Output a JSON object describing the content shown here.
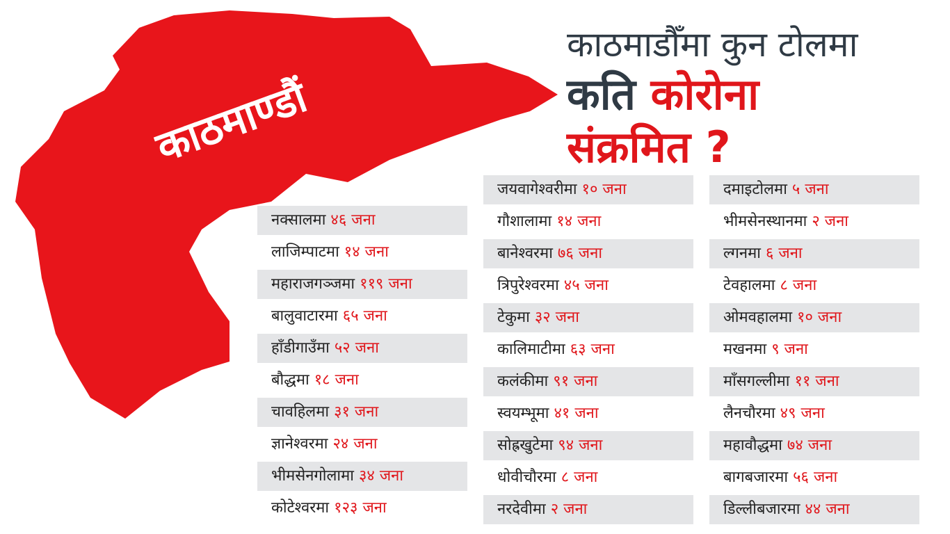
{
  "title": {
    "line1": "काठमाडौँमा कुन टोलमा",
    "line2_a": "कति",
    "line2_b": "कोरोना",
    "line3": "संक्रमित ?"
  },
  "map_label": "काठमाण्डौं",
  "columns": [
    [
      {
        "place": "नक्सालमा",
        "count": "४६ जना"
      },
      {
        "place": "लाजिम्पाटमा",
        "count": "१४ जना"
      },
      {
        "place": "महाराजगञ्जमा",
        "count": "११९ जना"
      },
      {
        "place": "बालुवाटारमा",
        "count": "६५ जना"
      },
      {
        "place": "हाँडीगाउँमा",
        "count": "५२ जना"
      },
      {
        "place": "बौद्धमा",
        "count": "१८ जना"
      },
      {
        "place": "चावहिलमा",
        "count": "३१ जना"
      },
      {
        "place": "ज्ञानेश्वरमा",
        "count": "२४ जना"
      },
      {
        "place": "भीमसेनगोलामा",
        "count": "३४ जना"
      },
      {
        "place": "कोटेश्वरमा",
        "count": "१२३ जना"
      }
    ],
    [
      {
        "place": "जयवागेश्वरीमा",
        "count": "१० जना"
      },
      {
        "place": "गौशालामा",
        "count": "१४ जना"
      },
      {
        "place": "बानेश्वरमा",
        "count": "७६ जना"
      },
      {
        "place": "त्रिपुरेश्वरमा",
        "count": "४५ जना"
      },
      {
        "place": "टेकुमा",
        "count": "३२ जना"
      },
      {
        "place": "कालिमाटीमा",
        "count": "६३ जना"
      },
      {
        "place": "कलंकीमा",
        "count": "९१ जना"
      },
      {
        "place": "स्वयम्भूमा",
        "count": "४१ जना"
      },
      {
        "place": "सोह्रखुटेमा",
        "count": "९४ जना"
      },
      {
        "place": "धोवीचौरमा",
        "count": "८ जना"
      },
      {
        "place": "नरदेवीमा",
        "count": "२ जना"
      }
    ],
    [
      {
        "place": "दमाइटोलमा",
        "count": "५ जना"
      },
      {
        "place": "भीमसेनस्थानमा",
        "count": "२ जना"
      },
      {
        "place": "ल्गनमा",
        "count": "६ जना"
      },
      {
        "place": "टेवहालमा",
        "count": "८ जना"
      },
      {
        "place": "ओमवहालमा",
        "count": "१० जना"
      },
      {
        "place": "मखनमा",
        "count": "९ जना"
      },
      {
        "place": "माँसगल्लीमा",
        "count": "११ जना"
      },
      {
        "place": "लैनचौरमा",
        "count": "४९ जना"
      },
      {
        "place": "महावौद्धमा",
        "count": "७४ जना"
      },
      {
        "place": "बागबजारमा",
        "count": "५६ जना"
      },
      {
        "place": "डिल्लीबजारमा",
        "count": "४४ जना"
      }
    ]
  ]
}
